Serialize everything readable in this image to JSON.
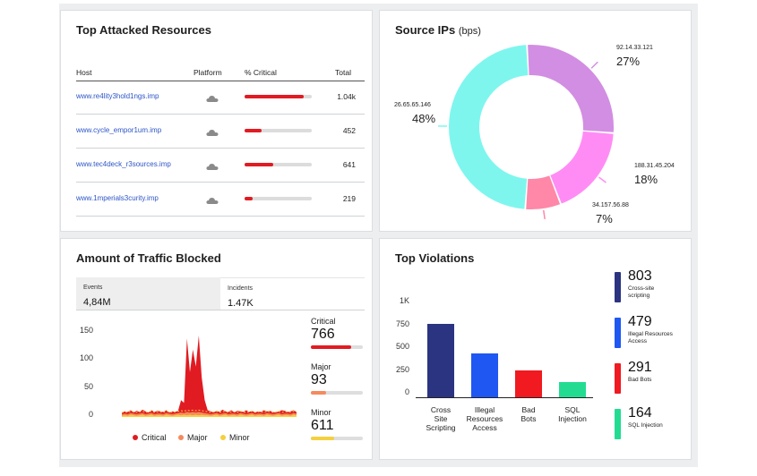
{
  "attacked": {
    "title": "Top Attacked Resources",
    "headers": {
      "host": "Host",
      "platform": "Platform",
      "critical": "% Critical",
      "total": "Total"
    },
    "rows": [
      {
        "host": "www.re4lity3hold1ngs.imp",
        "critical": 0.88,
        "total": "1.04k"
      },
      {
        "host": "www.cycle_empor1um.imp",
        "critical": 0.25,
        "total": "452"
      },
      {
        "host": "www.tec4deck_r3sources.imp",
        "critical": 0.42,
        "total": "641"
      },
      {
        "host": "www.1mperials3curity.imp",
        "critical": 0.12,
        "total": "219"
      }
    ],
    "cloud_icon": "cloud-icon",
    "bar_color": "#e11b22"
  },
  "sources": {
    "title": "Source IPs",
    "unit": "(bps)",
    "slices": [
      {
        "ip": "92.14.33.121",
        "pct": "27%",
        "value": 27,
        "color": "#d28ee2"
      },
      {
        "ip": "188.31.45.204",
        "pct": "18%",
        "value": 18,
        "color": "#ff8cf5"
      },
      {
        "ip": "34.157.56.88",
        "pct": "7%",
        "value": 7,
        "color": "#ff87a8"
      },
      {
        "ip": "26.65.65.146",
        "pct": "48%",
        "value": 48,
        "color": "#7ef6ee"
      }
    ]
  },
  "traffic": {
    "title": "Amount of Traffic Blocked",
    "events_label": "Events",
    "events_value": "4,84M",
    "incidents_label": "Incidents",
    "incidents_value": "1.47K",
    "yticks": [
      "150",
      "100",
      "50",
      "0"
    ],
    "severity": [
      {
        "label": "Critical",
        "value": "766",
        "fraction": 0.78,
        "color": "#e11b22"
      },
      {
        "label": "Major",
        "value": "93",
        "fraction": 0.3,
        "color": "#f58a5e"
      },
      {
        "label": "Minor",
        "value": "611",
        "fraction": 0.45,
        "color": "#f4d03f"
      }
    ],
    "legend": [
      {
        "label": "Critical",
        "color": "#e11b22"
      },
      {
        "label": "Major",
        "color": "#f58a5e"
      },
      {
        "label": "Minor",
        "color": "#f4d03f"
      }
    ]
  },
  "violations": {
    "title": "Top Violations",
    "yticks": [
      "1K",
      "750",
      "500",
      "250",
      "0"
    ],
    "categories": [
      {
        "label": "Cross Site Scripting",
        "lines": [
          "Cross",
          "Site",
          "Scripting"
        ],
        "value": 803,
        "color": "#2b3481"
      },
      {
        "label": "Illegal Resources Access",
        "lines": [
          "Illegal",
          "Resources",
          "Access"
        ],
        "value": 479,
        "color": "#1f57f2"
      },
      {
        "label": "Bad Bots",
        "lines": [
          "Bad",
          "Bots"
        ],
        "value": 291,
        "color": "#f01a20"
      },
      {
        "label": "SQL Injection",
        "lines": [
          "SQL",
          "Injection"
        ],
        "value": 164,
        "color": "#23dc92"
      }
    ],
    "kpis": [
      {
        "value": "803",
        "lines": [
          "Cross-site",
          "scripting"
        ],
        "color": "#2b3481"
      },
      {
        "value": "479",
        "lines": [
          "Illegal Resources",
          "Access"
        ],
        "color": "#1f57f2"
      },
      {
        "value": "291",
        "lines": [
          "Bad Bots"
        ],
        "color": "#f01a20"
      },
      {
        "value": "164",
        "lines": [
          "SQL Injection"
        ],
        "color": "#23dc92"
      }
    ]
  },
  "chart_data": [
    {
      "type": "pie",
      "title": "Source IPs",
      "categories": [
        "92.14.33.121",
        "188.31.45.204",
        "34.157.56.88",
        "26.65.65.146"
      ],
      "values": [
        27,
        18,
        7,
        48
      ]
    },
    {
      "type": "area",
      "title": "Amount of Traffic Blocked",
      "ylim": [
        0,
        150
      ],
      "series": [
        {
          "name": "Critical",
          "values": [
            7,
            10,
            9,
            12,
            8,
            11,
            9,
            13,
            10,
            8,
            12,
            9,
            11,
            10,
            9,
            12,
            8,
            10,
            9,
            11,
            30,
            25,
            140,
            80,
            120,
            90,
            145,
            70,
            30,
            12,
            10,
            8,
            11,
            9,
            13,
            10,
            9,
            12,
            8,
            11,
            10,
            9,
            12,
            9,
            11,
            8,
            10,
            9,
            12,
            10,
            11,
            9,
            8,
            10,
            12,
            11,
            9,
            10,
            12,
            9
          ]
        },
        {
          "name": "Major",
          "values": [
            5,
            6,
            5,
            7,
            6,
            5,
            6,
            7,
            5,
            6,
            7,
            5,
            6,
            6,
            5,
            7,
            6,
            5,
            6,
            7,
            8,
            7,
            9,
            8,
            9,
            8,
            9,
            8,
            7,
            6,
            5,
            6,
            7,
            5,
            6,
            7,
            5,
            6,
            6,
            5,
            7,
            6,
            5,
            6,
            7,
            5,
            6,
            6,
            5,
            7,
            6,
            5,
            6,
            7,
            5,
            6,
            6,
            5,
            7,
            6
          ]
        },
        {
          "name": "Minor",
          "values": [
            2,
            3,
            2,
            4,
            3,
            2,
            3,
            4,
            2,
            3,
            4,
            2,
            3,
            3,
            2,
            4,
            3,
            2,
            3,
            4,
            3,
            4,
            3,
            4,
            3,
            4,
            3,
            4,
            3,
            3,
            2,
            3,
            4,
            2,
            3,
            4,
            2,
            3,
            3,
            2,
            4,
            3,
            2,
            3,
            4,
            2,
            3,
            3,
            2,
            4,
            3,
            2,
            3,
            4,
            2,
            3,
            3,
            2,
            4,
            3
          ]
        }
      ]
    },
    {
      "type": "bar",
      "title": "Top Violations",
      "categories": [
        "Cross Site Scripting",
        "Illegal Resources Access",
        "Bad Bots",
        "SQL Injection"
      ],
      "values": [
        803,
        479,
        291,
        164
      ],
      "ylim": [
        0,
        1000
      ]
    }
  ]
}
